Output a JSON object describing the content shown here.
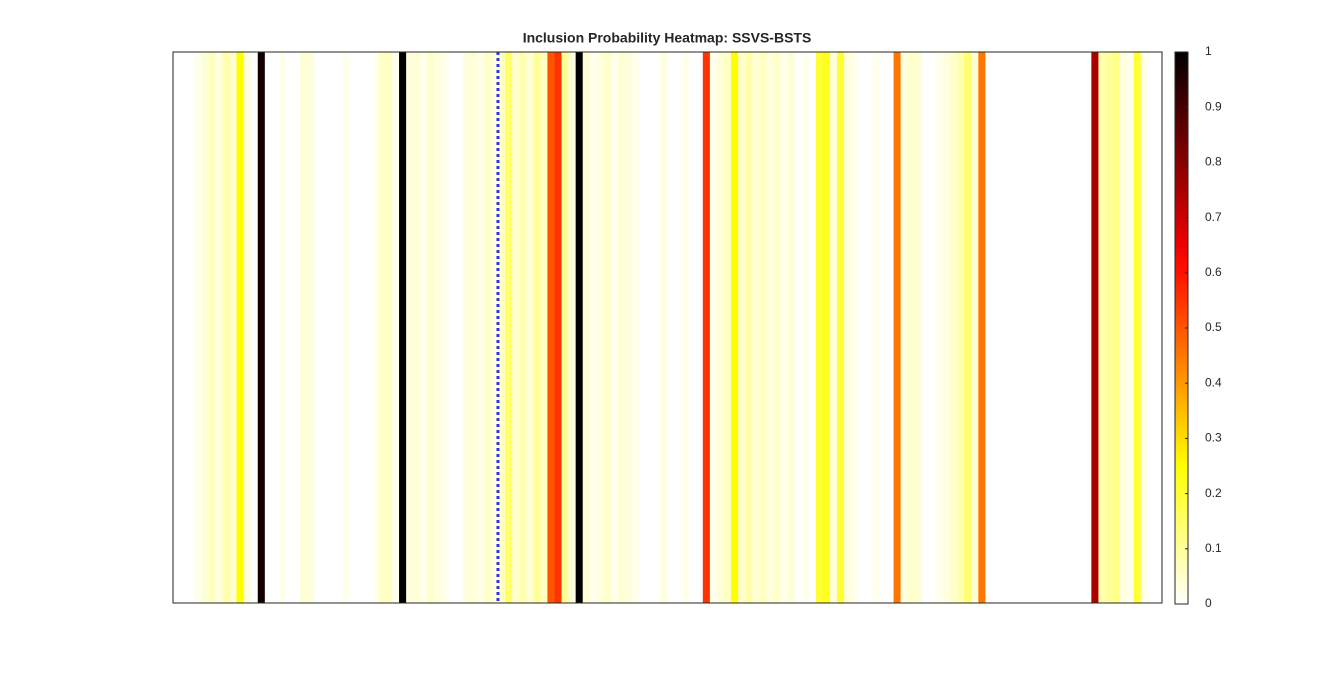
{
  "chart_data": {
    "type": "heatmap",
    "title": "Inclusion Probability Heatmap: SSVS-BSTS",
    "colormap": "hot-reversed",
    "xlim": [
      0,
      140
    ],
    "values": [
      0,
      0,
      0,
      0.02,
      0.04,
      0.06,
      0.03,
      0.08,
      0.05,
      0.25,
      0.03,
      0,
      0.97,
      0,
      0,
      0.02,
      0,
      0,
      0.04,
      0.03,
      0,
      0,
      0,
      0,
      0.02,
      0,
      0,
      0,
      0.01,
      0.05,
      0.06,
      0.02,
      1,
      0.03,
      0.04,
      0.02,
      0.05,
      0.03,
      0.02,
      0,
      0,
      0.03,
      0.04,
      0.02,
      0.05,
      0.03,
      0.06,
      0.15,
      0.05,
      0.08,
      0.04,
      0.1,
      0.06,
      0.5,
      0.55,
      0.1,
      0.03,
      1,
      0.04,
      0.02,
      0.03,
      0.05,
      0.02,
      0.04,
      0.03,
      0.02,
      0,
      0,
      0,
      0.03,
      0,
      0,
      0.02,
      0,
      0,
      0.55,
      0.02,
      0.04,
      0.06,
      0.25,
      0.05,
      0.08,
      0.04,
      0.06,
      0.03,
      0.05,
      0.02,
      0.04,
      0,
      0.02,
      0,
      0.2,
      0.22,
      0.04,
      0.2,
      0.03,
      0.02,
      0,
      0,
      0.02,
      0,
      0,
      0.45,
      0.03,
      0.05,
      0.04,
      0,
      0,
      0.02,
      0.03,
      0.05,
      0.08,
      0.14,
      0.04,
      0.45,
      0,
      0,
      0,
      0,
      0,
      0,
      0,
      0,
      0,
      0,
      0,
      0,
      0,
      0,
      0,
      0.75,
      0.08,
      0.1,
      0.12,
      0.03,
      0.02,
      0.2,
      0.02,
      0,
      0
    ],
    "vline": {
      "x": 46,
      "color": "#3333ee"
    },
    "clim": [
      0,
      1
    ],
    "cticks": [
      0,
      0.1,
      0.2,
      0.3,
      0.4,
      0.5,
      0.6,
      0.7,
      0.8,
      0.9,
      1
    ]
  }
}
